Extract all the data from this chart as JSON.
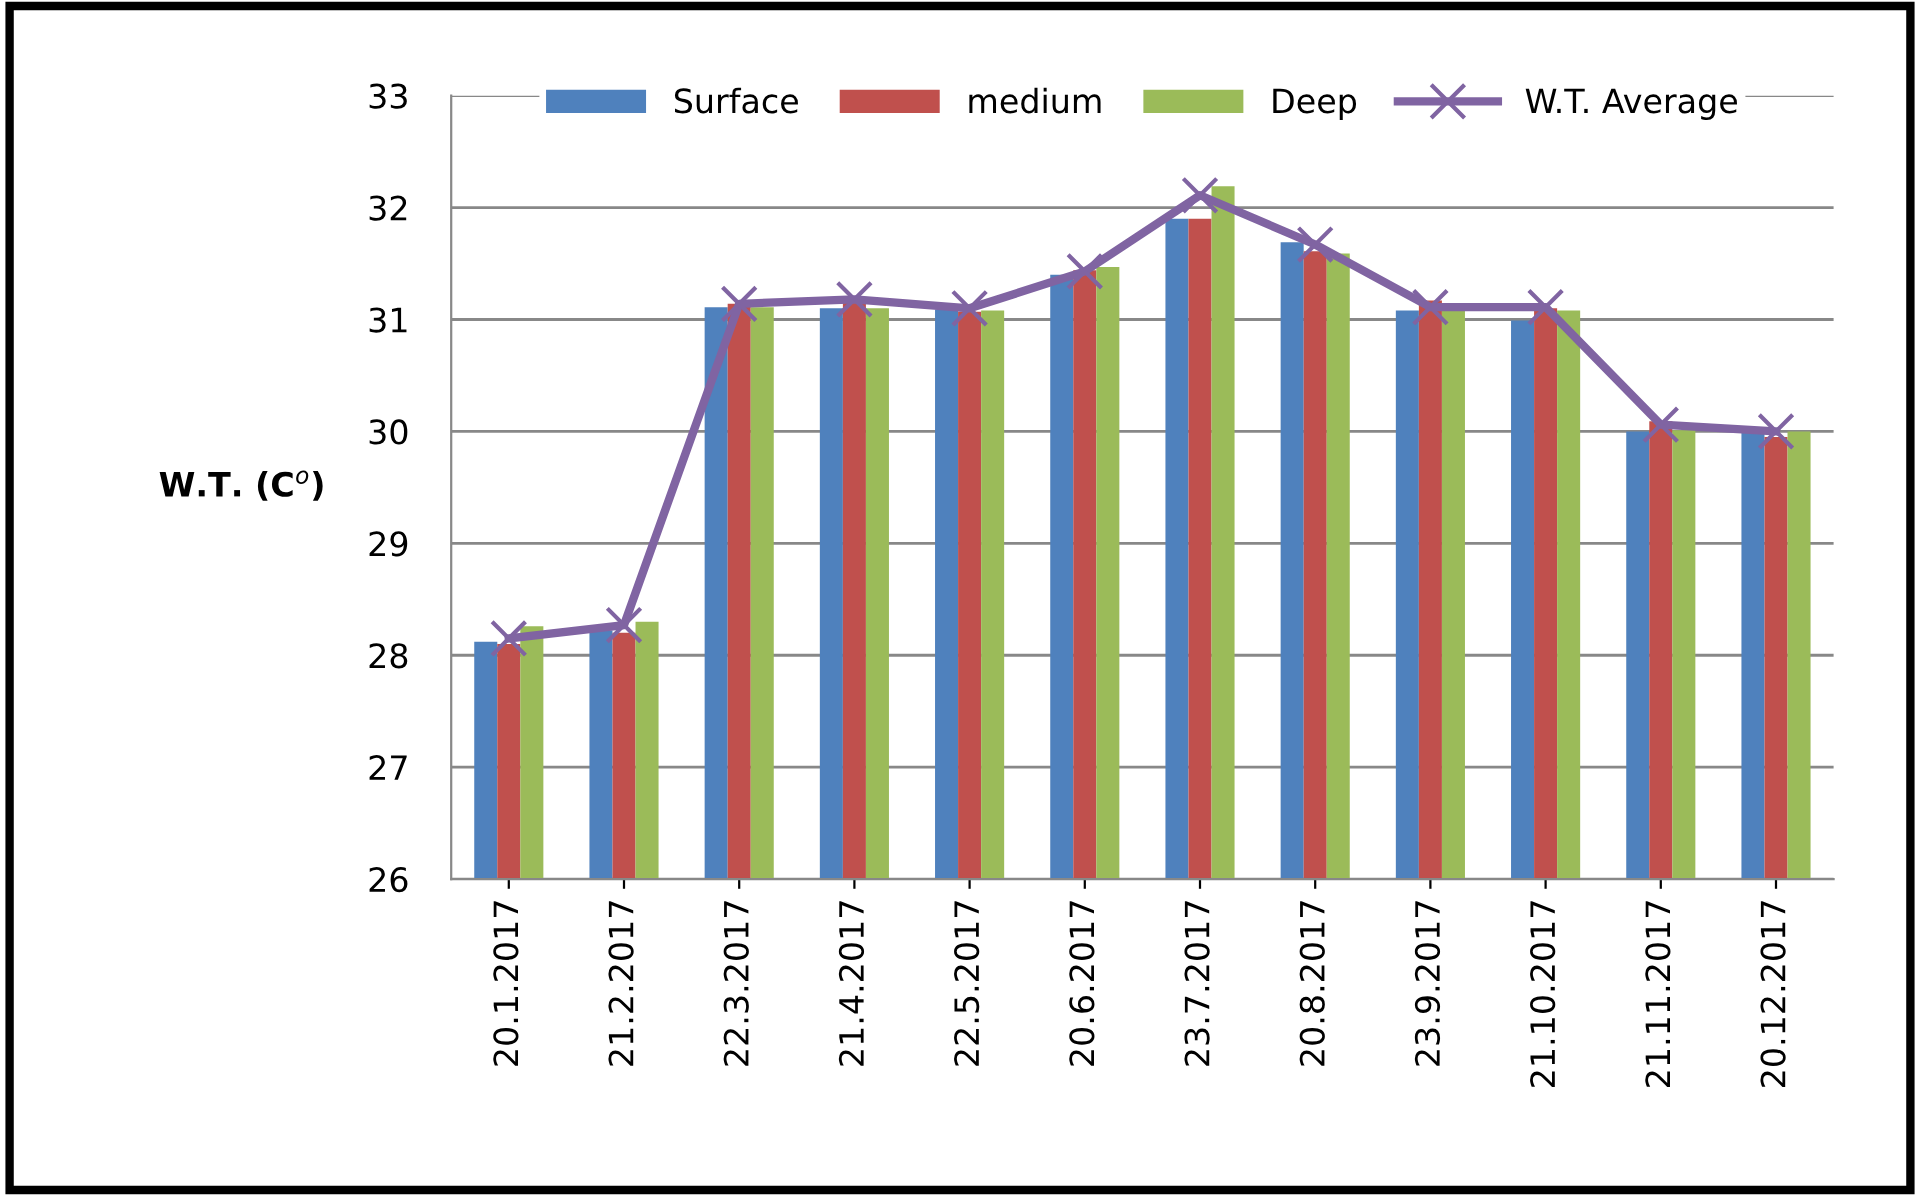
{
  "chart_data": {
    "type": "bar",
    "ylabel": "W.T. (C$^{o}$)",
    "categories": [
      "20.1.2017",
      "21.2.2017",
      "22.3.2017",
      "21.4.2017",
      "22.5.2017",
      "20.6.2017",
      "23.7.2017",
      "20.8.2017",
      "23.9.2017",
      "21.10.2017",
      "21.11.2017",
      "20.12.2017"
    ],
    "series": [
      {
        "name": "Surface",
        "color": "#4f81bd",
        "values": [
          28.12,
          28.22,
          31.11,
          31.1,
          31.09,
          31.4,
          31.9,
          31.69,
          31.08,
          30.99,
          30.0,
          30.0
        ]
      },
      {
        "name": "medium",
        "color": "#c0504d",
        "values": [
          28.1,
          28.2,
          31.14,
          31.17,
          31.07,
          31.44,
          31.9,
          31.61,
          31.17,
          31.1,
          30.09,
          29.95
        ]
      },
      {
        "name": "Deep",
        "color": "#9bbb59",
        "values": [
          28.26,
          28.3,
          31.11,
          31.1,
          31.08,
          31.47,
          32.19,
          31.59,
          31.08,
          31.08,
          30.01,
          30.0
        ]
      },
      {
        "name": "W.T. Average",
        "color": "#8064a2",
        "type": "line",
        "marker": "cross",
        "values": [
          28.15,
          28.27,
          31.14,
          31.18,
          31.1,
          31.43,
          32.11,
          31.67,
          31.11,
          31.11,
          30.06,
          30.0
        ]
      }
    ],
    "ylim": [
      26,
      33
    ],
    "yticks": [
      26,
      27,
      28,
      29,
      30,
      31,
      32,
      33
    ],
    "grid": "y",
    "legend": "top"
  }
}
